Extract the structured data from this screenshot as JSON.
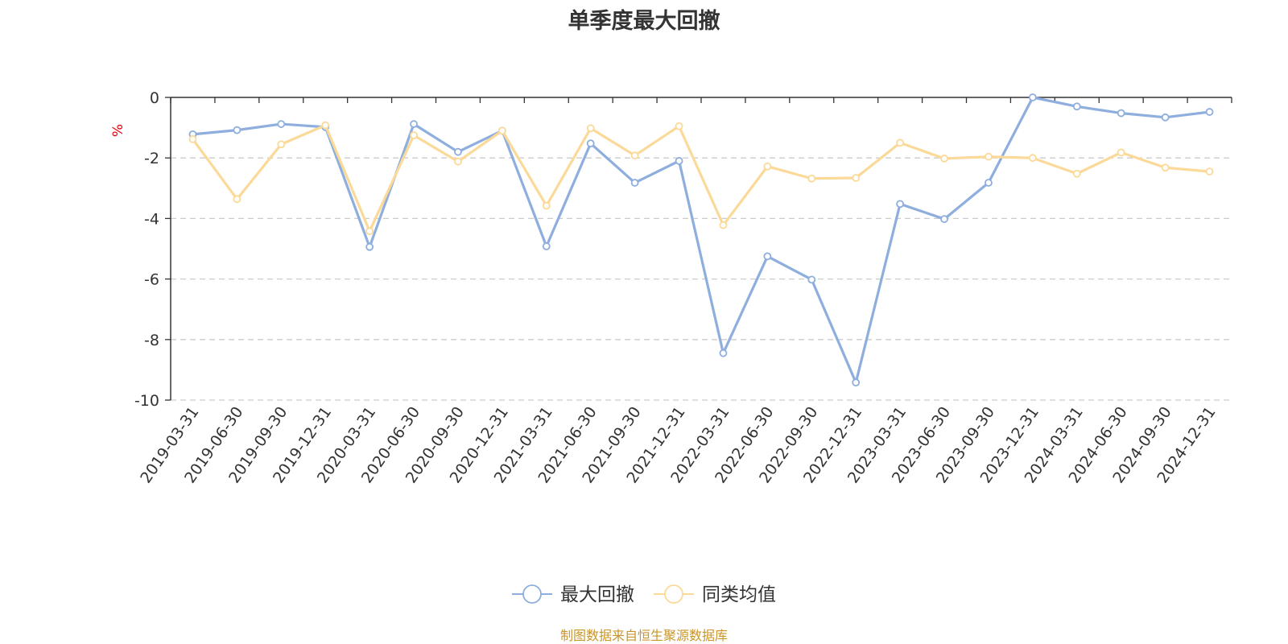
{
  "colors": {
    "series1": "#8eaede",
    "series2": "#fbd998",
    "unit": "#e8000b",
    "source": "#c8962a",
    "grid": "#cccccc",
    "axis": "#333333"
  },
  "source_note": "制图数据来自恒生聚源数据库",
  "chart_data": {
    "type": "line",
    "title": "单季度最大回撤",
    "ylabel": "%",
    "ylim": [
      -10,
      0
    ],
    "yticks": [
      0,
      -2,
      -4,
      -6,
      -8,
      -10
    ],
    "grid": "horizontal-dashed",
    "legend_position": "bottom-center",
    "categories": [
      "2019-03-31",
      "2019-06-30",
      "2019-09-30",
      "2019-12-31",
      "2020-03-31",
      "2020-06-30",
      "2020-09-30",
      "2020-12-31",
      "2021-03-31",
      "2021-06-30",
      "2021-09-30",
      "2021-12-31",
      "2022-03-31",
      "2022-06-30",
      "2022-09-30",
      "2022-12-31",
      "2023-03-31",
      "2023-06-30",
      "2023-09-30",
      "2023-12-31",
      "2024-03-31",
      "2024-06-30",
      "2024-09-30",
      "2024-12-31"
    ],
    "series": [
      {
        "name": "最大回撤",
        "color": "#8eaede",
        "values": [
          -1.22,
          -1.08,
          -0.88,
          -0.98,
          -4.94,
          -0.88,
          -1.8,
          -1.1,
          -4.92,
          -1.52,
          -2.82,
          -2.1,
          -8.45,
          -5.25,
          -6.02,
          -9.42,
          -3.52,
          -4.02,
          -2.82,
          0.0,
          -0.3,
          -0.52,
          -0.66,
          -0.48
        ]
      },
      {
        "name": "同类均值",
        "color": "#fbd998",
        "values": [
          -1.38,
          -3.36,
          -1.55,
          -0.92,
          -4.42,
          -1.25,
          -2.12,
          -1.1,
          -3.58,
          -1.02,
          -1.92,
          -0.95,
          -4.22,
          -2.28,
          -2.68,
          -2.66,
          -1.5,
          -2.02,
          -1.96,
          -2.0,
          -2.52,
          -1.82,
          -2.32,
          -2.45
        ]
      }
    ]
  }
}
